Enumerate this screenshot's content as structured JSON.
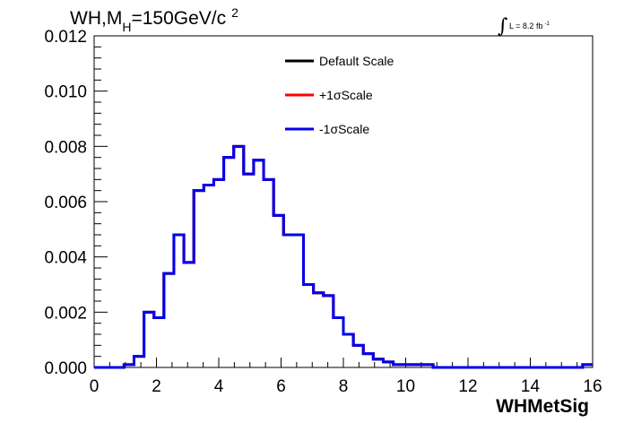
{
  "chart_data": {
    "type": "line",
    "title_parts": {
      "main": "WH,M",
      "sub": "H",
      "rest": "=150GeV/c",
      "sup": "2"
    },
    "luminosity": {
      "integral_symbol": "∫",
      "text": "L = 8.2 fb",
      "sup": "-1"
    },
    "xlabel": "WHMetSig",
    "ylabel": "",
    "xlim": [
      0,
      16
    ],
    "ylim": [
      0,
      0.012
    ],
    "x_ticks": [
      0,
      2,
      4,
      6,
      8,
      10,
      12,
      14,
      16
    ],
    "x_tick_labels": [
      "0",
      "2",
      "4",
      "6",
      "8",
      "10",
      "12",
      "14",
      "16"
    ],
    "y_ticks": [
      0,
      0.002,
      0.004,
      0.006,
      0.008,
      0.01,
      0.012
    ],
    "y_tick_labels": [
      "0.000",
      "0.002",
      "0.004",
      "0.006",
      "0.008",
      "0.010",
      "0.012"
    ],
    "bin_width": 0.32,
    "bin_values": [
      0.0,
      0.0,
      0.0,
      0.0001,
      0.0004,
      0.002,
      0.0018,
      0.0034,
      0.0048,
      0.0038,
      0.0064,
      0.0066,
      0.0068,
      0.0076,
      0.008,
      0.007,
      0.0075,
      0.0068,
      0.0055,
      0.0048,
      0.0048,
      0.003,
      0.0027,
      0.0026,
      0.0018,
      0.0012,
      0.0008,
      0.0005,
      0.0003,
      0.0002,
      0.0001,
      0.0001,
      0.0001,
      0.0001,
      0.0,
      0.0,
      0.0,
      0.0,
      0.0,
      0.0,
      0.0,
      0.0,
      0.0,
      0.0,
      0.0,
      0.0,
      0.0,
      0.0,
      0.0,
      0.0001
    ],
    "series": [
      {
        "name": "Default Scale",
        "color": "#000000"
      },
      {
        "name": "+1σScale",
        "color": "#ff0000"
      },
      {
        "name": "-1σScale",
        "color": "#0000ee"
      }
    ],
    "legend_placement": "top-center",
    "grid": false
  }
}
